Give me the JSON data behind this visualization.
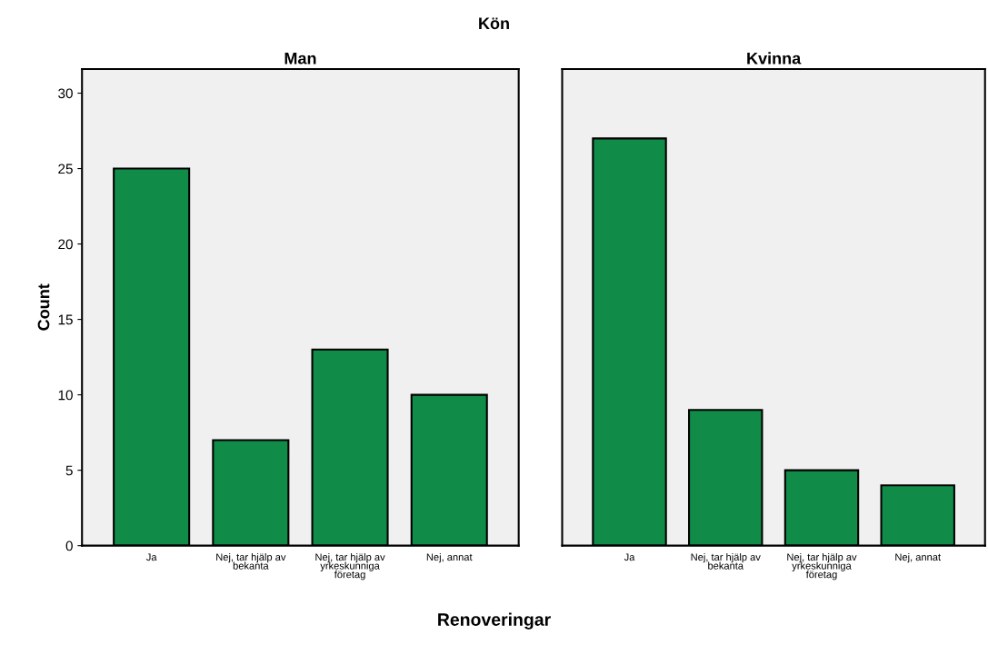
{
  "chart_data": [
    {
      "type": "bar",
      "title": "Man",
      "annotations": [
        "Kön"
      ],
      "xlabel": "Renoveringar",
      "ylabel": "Count",
      "categories": [
        "Ja",
        "Nej, tar hjälp av\nbekanta",
        "Nej, tar hjälp av\nyrkeskunniga\nföretag",
        "Nej, annat"
      ],
      "values": [
        25,
        7,
        13,
        10
      ],
      "color": "#108c48",
      "ylim": [
        0,
        31.6
      ],
      "yticks": [
        0,
        5,
        10,
        15,
        20,
        25,
        30
      ],
      "grid": false
    },
    {
      "type": "bar",
      "title": "Kvinna",
      "categories": [
        "Ja",
        "Nej, tar hjälp av\nbekanta",
        "Nej, tar hjälp av\nyrkeskunniga\nföretag",
        "Nej, annat"
      ],
      "values": [
        27,
        9,
        5,
        4
      ],
      "color": "#108c48",
      "ylim": [
        0,
        31.6
      ],
      "yticks": [
        0,
        5,
        10,
        15,
        20,
        25,
        30
      ],
      "grid": false,
      "tick_labels": "x"
    }
  ]
}
